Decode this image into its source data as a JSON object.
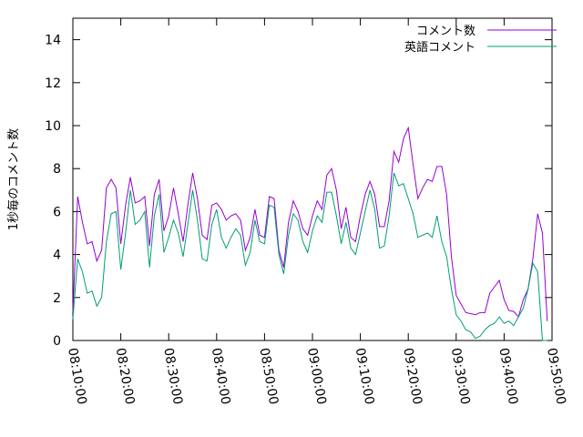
{
  "chart_data": {
    "type": "line",
    "title": "",
    "xlabel": "",
    "ylabel": "1秒毎のコメント数",
    "ylim": [
      0,
      15
    ],
    "yticks": [
      "0",
      "2",
      "4",
      "6",
      "8",
      "10",
      "12",
      "14"
    ],
    "xlim": [
      "08:10:00",
      "09:50:00"
    ],
    "xticks": [
      "08:10:00",
      "08:20:00",
      "08:30:00",
      "08:40:00",
      "08:50:00",
      "09:00:00",
      "09:10:00",
      "09:20:00",
      "09:30:00",
      "09:40:00",
      "09:50:00"
    ],
    "legend_position": "top-right",
    "grid": false,
    "series": [
      {
        "name": "コメント数",
        "color": "#9400d3",
        "points": [
          [
            "08:10:00",
            1.3
          ],
          [
            "08:11:00",
            6.7
          ],
          [
            "08:12:00",
            5.5
          ],
          [
            "08:13:00",
            4.5
          ],
          [
            "08:14:00",
            4.6
          ],
          [
            "08:15:00",
            3.7
          ],
          [
            "08:16:00",
            4.2
          ],
          [
            "08:17:00",
            7.1
          ],
          [
            "08:18:00",
            7.5
          ],
          [
            "08:19:00",
            7.1
          ],
          [
            "08:20:00",
            4.5
          ],
          [
            "08:21:00",
            6.3
          ],
          [
            "08:22:00",
            7.6
          ],
          [
            "08:23:00",
            6.4
          ],
          [
            "08:24:00",
            6.5
          ],
          [
            "08:25:00",
            6.7
          ],
          [
            "08:26:00",
            4.4
          ],
          [
            "08:27:00",
            6.8
          ],
          [
            "08:28:00",
            7.5
          ],
          [
            "08:29:00",
            5.1
          ],
          [
            "08:30:00",
            5.8
          ],
          [
            "08:31:00",
            7.1
          ],
          [
            "08:32:00",
            5.9
          ],
          [
            "08:33:00",
            4.6
          ],
          [
            "08:34:00",
            6.3
          ],
          [
            "08:35:00",
            7.8
          ],
          [
            "08:36:00",
            6.6
          ],
          [
            "08:37:00",
            4.9
          ],
          [
            "08:38:00",
            4.7
          ],
          [
            "08:39:00",
            6.3
          ],
          [
            "08:40:00",
            6.4
          ],
          [
            "08:41:00",
            6.1
          ],
          [
            "08:42:00",
            5.6
          ],
          [
            "08:43:00",
            5.8
          ],
          [
            "08:44:00",
            5.9
          ],
          [
            "08:45:00",
            5.6
          ],
          [
            "08:46:00",
            4.2
          ],
          [
            "08:47:00",
            4.8
          ],
          [
            "08:48:00",
            6.1
          ],
          [
            "08:49:00",
            4.9
          ],
          [
            "08:50:00",
            4.8
          ],
          [
            "08:51:00",
            6.7
          ],
          [
            "08:52:00",
            6.6
          ],
          [
            "08:53:00",
            4.2
          ],
          [
            "08:54:00",
            3.4
          ],
          [
            "08:55:00",
            5.5
          ],
          [
            "08:56:00",
            6.5
          ],
          [
            "08:57:00",
            6.0
          ],
          [
            "08:58:00",
            5.2
          ],
          [
            "08:59:00",
            4.9
          ],
          [
            "09:00:00",
            5.8
          ],
          [
            "09:01:00",
            6.5
          ],
          [
            "09:02:00",
            6.1
          ],
          [
            "09:03:00",
            7.7
          ],
          [
            "09:04:00",
            8.0
          ],
          [
            "09:05:00",
            7.0
          ],
          [
            "09:06:00",
            5.2
          ],
          [
            "09:07:00",
            6.2
          ],
          [
            "09:08:00",
            4.8
          ],
          [
            "09:09:00",
            4.6
          ],
          [
            "09:10:00",
            5.8
          ],
          [
            "09:11:00",
            6.8
          ],
          [
            "09:12:00",
            7.4
          ],
          [
            "09:13:00",
            6.8
          ],
          [
            "09:14:00",
            5.3
          ],
          [
            "09:15:00",
            5.3
          ],
          [
            "09:16:00",
            6.5
          ],
          [
            "09:17:00",
            8.8
          ],
          [
            "09:18:00",
            8.3
          ],
          [
            "09:19:00",
            9.4
          ],
          [
            "09:20:00",
            9.9
          ],
          [
            "09:21:00",
            8.2
          ],
          [
            "09:22:00",
            6.6
          ],
          [
            "09:23:00",
            7.1
          ],
          [
            "09:24:00",
            7.5
          ],
          [
            "09:25:00",
            7.4
          ],
          [
            "09:26:00",
            8.1
          ],
          [
            "09:27:00",
            8.1
          ],
          [
            "09:28:00",
            6.8
          ],
          [
            "09:29:00",
            3.9
          ],
          [
            "09:30:00",
            2.1
          ],
          [
            "09:31:00",
            1.7
          ],
          [
            "09:32:00",
            1.3
          ],
          [
            "09:33:00",
            1.25
          ],
          [
            "09:34:00",
            1.2
          ],
          [
            "09:35:00",
            1.3
          ],
          [
            "09:36:00",
            1.3
          ],
          [
            "09:37:00",
            2.2
          ],
          [
            "09:38:00",
            2.5
          ],
          [
            "09:39:00",
            2.8
          ],
          [
            "09:40:00",
            1.9
          ],
          [
            "09:41:00",
            1.4
          ],
          [
            "09:42:00",
            1.35
          ],
          [
            "09:43:00",
            1.1
          ],
          [
            "09:44:00",
            1.9
          ],
          [
            "09:45:00",
            2.4
          ],
          [
            "09:46:00",
            3.8
          ],
          [
            "09:47:00",
            5.9
          ],
          [
            "09:48:00",
            5.0
          ],
          [
            "09:49:00",
            0.9
          ]
        ]
      },
      {
        "name": "英語コメント",
        "color": "#009e73",
        "points": [
          [
            "08:10:00",
            1.0
          ],
          [
            "08:11:00",
            3.8
          ],
          [
            "08:12:00",
            3.2
          ],
          [
            "08:13:00",
            2.2
          ],
          [
            "08:14:00",
            2.3
          ],
          [
            "08:15:00",
            1.6
          ],
          [
            "08:16:00",
            2.0
          ],
          [
            "08:17:00",
            4.6
          ],
          [
            "08:18:00",
            5.9
          ],
          [
            "08:19:00",
            6.0
          ],
          [
            "08:20:00",
            3.3
          ],
          [
            "08:21:00",
            5.0
          ],
          [
            "08:22:00",
            7.0
          ],
          [
            "08:23:00",
            5.4
          ],
          [
            "08:24:00",
            5.6
          ],
          [
            "08:25:00",
            6.0
          ],
          [
            "08:26:00",
            3.4
          ],
          [
            "08:27:00",
            5.8
          ],
          [
            "08:28:00",
            6.8
          ],
          [
            "08:29:00",
            4.1
          ],
          [
            "08:30:00",
            4.8
          ],
          [
            "08:31:00",
            5.6
          ],
          [
            "08:32:00",
            5.0
          ],
          [
            "08:33:00",
            3.9
          ],
          [
            "08:34:00",
            5.4
          ],
          [
            "08:35:00",
            7.0
          ],
          [
            "08:36:00",
            5.6
          ],
          [
            "08:37:00",
            3.8
          ],
          [
            "08:38:00",
            3.7
          ],
          [
            "08:39:00",
            5.4
          ],
          [
            "08:40:00",
            6.1
          ],
          [
            "08:41:00",
            4.8
          ],
          [
            "08:42:00",
            4.3
          ],
          [
            "08:43:00",
            4.8
          ],
          [
            "08:44:00",
            5.2
          ],
          [
            "08:45:00",
            4.9
          ],
          [
            "08:46:00",
            3.5
          ],
          [
            "08:47:00",
            4.1
          ],
          [
            "08:48:00",
            5.6
          ],
          [
            "08:49:00",
            4.6
          ],
          [
            "08:50:00",
            4.5
          ],
          [
            "08:51:00",
            6.3
          ],
          [
            "08:52:00",
            6.2
          ],
          [
            "08:53:00",
            4.0
          ],
          [
            "08:54:00",
            3.1
          ],
          [
            "08:55:00",
            4.9
          ],
          [
            "08:56:00",
            5.9
          ],
          [
            "08:57:00",
            5.6
          ],
          [
            "08:58:00",
            4.6
          ],
          [
            "08:59:00",
            4.1
          ],
          [
            "09:00:00",
            5.1
          ],
          [
            "09:01:00",
            5.8
          ],
          [
            "09:02:00",
            5.5
          ],
          [
            "09:03:00",
            6.9
          ],
          [
            "09:04:00",
            6.9
          ],
          [
            "09:05:00",
            5.8
          ],
          [
            "09:06:00",
            4.5
          ],
          [
            "09:07:00",
            5.5
          ],
          [
            "09:08:00",
            4.3
          ],
          [
            "09:09:00",
            4.0
          ],
          [
            "09:10:00",
            5.0
          ],
          [
            "09:11:00",
            6.0
          ],
          [
            "09:12:00",
            7.0
          ],
          [
            "09:13:00",
            6.1
          ],
          [
            "09:14:00",
            4.3
          ],
          [
            "09:15:00",
            4.4
          ],
          [
            "09:16:00",
            5.8
          ],
          [
            "09:17:00",
            7.8
          ],
          [
            "09:18:00",
            7.2
          ],
          [
            "09:19:00",
            7.3
          ],
          [
            "09:20:00",
            6.6
          ],
          [
            "09:21:00",
            5.9
          ],
          [
            "09:22:00",
            4.8
          ],
          [
            "09:23:00",
            4.9
          ],
          [
            "09:24:00",
            5.0
          ],
          [
            "09:25:00",
            4.8
          ],
          [
            "09:26:00",
            5.8
          ],
          [
            "09:27:00",
            4.6
          ],
          [
            "09:28:00",
            3.9
          ],
          [
            "09:29:00",
            2.4
          ],
          [
            "09:30:00",
            1.2
          ],
          [
            "09:31:00",
            0.9
          ],
          [
            "09:32:00",
            0.5
          ],
          [
            "09:33:00",
            0.4
          ],
          [
            "09:34:00",
            0.1
          ],
          [
            "09:35:00",
            0.2
          ],
          [
            "09:36:00",
            0.5
          ],
          [
            "09:37:00",
            0.7
          ],
          [
            "09:38:00",
            0.8
          ],
          [
            "09:39:00",
            1.1
          ],
          [
            "09:40:00",
            0.8
          ],
          [
            "09:41:00",
            0.9
          ],
          [
            "09:42:00",
            0.7
          ],
          [
            "09:43:00",
            1.1
          ],
          [
            "09:44:00",
            1.5
          ],
          [
            "09:45:00",
            2.4
          ],
          [
            "09:46:00",
            3.6
          ],
          [
            "09:47:00",
            3.2
          ],
          [
            "09:48:00",
            0.0
          ],
          [
            "09:49:00",
            0.0
          ]
        ]
      }
    ]
  }
}
